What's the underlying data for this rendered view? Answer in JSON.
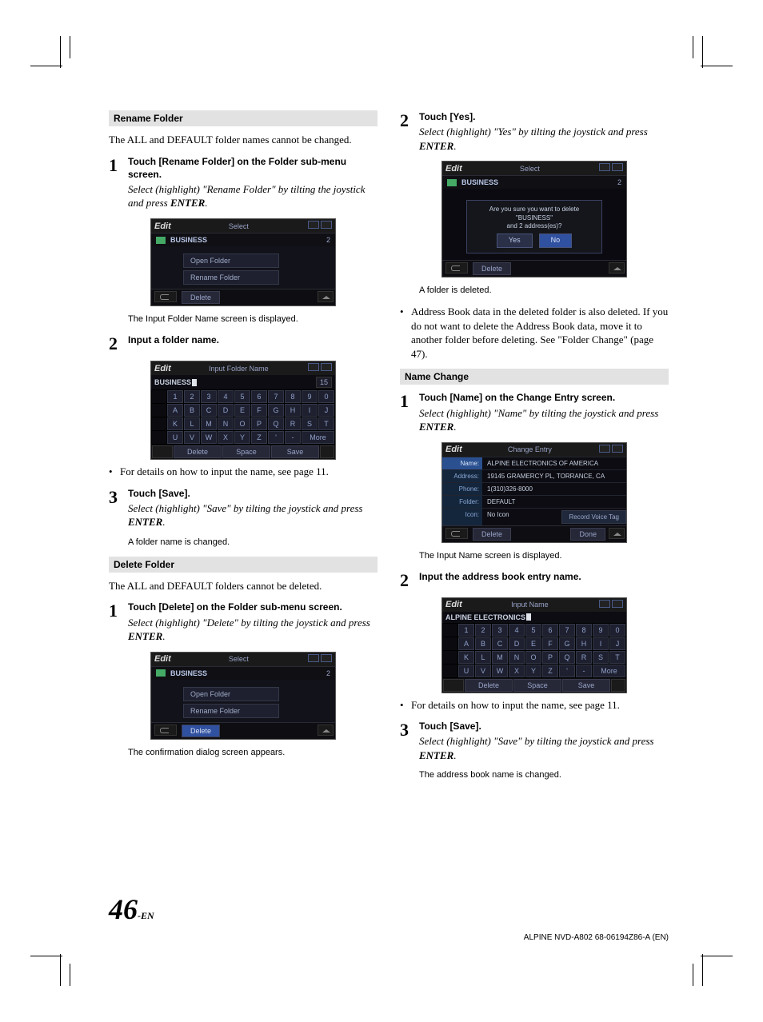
{
  "page": {
    "number": "46",
    "suffix": "-EN",
    "footer": "ALPINE NVD-A802 68-06194Z86-A (EN)"
  },
  "left": {
    "rename": {
      "header": "Rename Folder",
      "intro": "The ALL and DEFAULT folder names cannot be changed.",
      "step1": {
        "num": "1",
        "title_pre": "Touch ",
        "title_bold": "[Rename Folder]",
        "title_post": " on the Folder sub-menu screen.",
        "italic": "Select (highlight) \"Rename Folder\" by tilting the joystick and press ",
        "italic_bold": "ENTER",
        "italic_end": "."
      },
      "shot1": {
        "title": "Edit",
        "mid": "Select",
        "folder": "BUSINESS",
        "count": "2",
        "menu": [
          "Open Folder",
          "Rename Folder"
        ],
        "bottom_btn": "Delete"
      },
      "caption1_pre": "The ",
      "caption1_mid": "Input Folder Name",
      "caption1_post": " screen is displayed.",
      "step2": {
        "num": "2",
        "title": "Input a folder name."
      },
      "shot2": {
        "title": "Edit",
        "mid": "Input Folder Name",
        "input": "BUSINESS",
        "count": "15",
        "rows": [
          [
            "",
            "1",
            "2",
            "3",
            "4",
            "5",
            "6",
            "7",
            "8",
            "9",
            "0"
          ],
          [
            "",
            "A",
            "B",
            "C",
            "D",
            "E",
            "F",
            "G",
            "H",
            "I",
            "J"
          ],
          [
            "",
            "K",
            "L",
            "M",
            "N",
            "O",
            "P",
            "Q",
            "R",
            "S",
            "T"
          ],
          [
            "",
            "U",
            "V",
            "W",
            "X",
            "Y",
            "Z",
            "'",
            "-",
            "More",
            "More"
          ]
        ],
        "bottom": [
          "Delete",
          "Space",
          "Save"
        ]
      },
      "bullet1": "For details on how to input the name, see page 11.",
      "step3": {
        "num": "3",
        "title_pre": "Touch ",
        "title_bold": "[Save]",
        "title_post": ".",
        "italic": "Select (highlight) \"Save\" by tilting the joystick and press ",
        "italic_bold": "ENTER",
        "italic_end": "."
      },
      "caption3": "A folder name is changed."
    },
    "delete": {
      "header": "Delete Folder",
      "intro": "The ALL and DEFAULT folders cannot be deleted.",
      "step1": {
        "num": "1",
        "title_pre": "Touch ",
        "title_bold": "[Delete]",
        "title_post": " on the Folder sub-menu screen.",
        "italic": "Select (highlight) \"Delete\" by tilting the joystick and press ",
        "italic_bold": "ENTER",
        "italic_end": "."
      },
      "shot1": {
        "title": "Edit",
        "mid": "Select",
        "folder": "BUSINESS",
        "count": "2",
        "menu": [
          "Open Folder",
          "Rename Folder"
        ],
        "bottom_btn": "Delete"
      },
      "caption1": "The confirmation dialog screen appears."
    }
  },
  "right": {
    "confirm": {
      "step2": {
        "num": "2",
        "title_pre": "Touch ",
        "title_bold": "[Yes]",
        "title_post": ".",
        "italic": "Select (highlight) \"Yes\" by tilting the joystick and press ",
        "italic_bold": "ENTER",
        "italic_end": "."
      },
      "shot": {
        "title": "Edit",
        "mid": "Select",
        "folder": "BUSINESS",
        "count": "2",
        "dlg_l1": "Are you sure you want to delete",
        "dlg_l2": "\"BUSINESS\"",
        "dlg_l3": "and 2 address(es)?",
        "yes": "Yes",
        "no": "No",
        "bottom_btn": "Delete"
      },
      "caption": "A folder is deleted.",
      "bullet": "Address Book data in the deleted folder is also deleted. If you do not want to delete the Address Book data, move it to another folder before deleting. See \"Folder Change\" (page 47)."
    },
    "name": {
      "header": "Name Change",
      "step1": {
        "num": "1",
        "title_pre": "Touch ",
        "title_bold": "[Name]",
        "title_post": " on the ",
        "title_bold2": "Change Entry",
        "title_post2": " screen.",
        "italic": "Select (highlight) \"Name\" by tilting the joystick and press ",
        "italic_bold": "ENTER",
        "italic_end": "."
      },
      "shot1": {
        "title": "Edit",
        "mid": "Change Entry",
        "rows": [
          {
            "l": "Name:",
            "v": "ALPINE ELECTRONICS OF AMERICA",
            "sel": true
          },
          {
            "l": "Address:",
            "v": "19145 GRAMERCY PL, TORRANCE, CA"
          },
          {
            "l": "Phone:",
            "v": "1(310)326-8000"
          },
          {
            "l": "Folder:",
            "v": "DEFAULT"
          },
          {
            "l": "Icon:",
            "v": "No Icon",
            "v2": "Record Voice Tag"
          }
        ],
        "bottom": [
          "Delete",
          "Done"
        ]
      },
      "caption1_pre": "The ",
      "caption1_mid": "Input Name",
      "caption1_post": " screen is displayed.",
      "step2": {
        "num": "2",
        "title": "Input the address book entry name."
      },
      "shot2": {
        "title": "Edit",
        "mid": "Input Name",
        "input": "ALPINE ELECTRONICS",
        "rows": [
          [
            "",
            "1",
            "2",
            "3",
            "4",
            "5",
            "6",
            "7",
            "8",
            "9",
            "0"
          ],
          [
            "",
            "A",
            "B",
            "C",
            "D",
            "E",
            "F",
            "G",
            "H",
            "I",
            "J"
          ],
          [
            "",
            "K",
            "L",
            "M",
            "N",
            "O",
            "P",
            "Q",
            "R",
            "S",
            "T"
          ],
          [
            "",
            "U",
            "V",
            "W",
            "X",
            "Y",
            "Z",
            "'",
            "-",
            "More",
            "More"
          ]
        ],
        "bottom": [
          "Delete",
          "Space",
          "Save"
        ]
      },
      "bullet1": "For details on how to input the name, see page 11.",
      "step3": {
        "num": "3",
        "title_pre": "Touch ",
        "title_bold": "[Save]",
        "title_post": ".",
        "italic": "Select (highlight) \"Save\" by tilting the joystick and press ",
        "italic_bold": "ENTER",
        "italic_end": "."
      },
      "caption3": "The address book name is changed."
    }
  }
}
